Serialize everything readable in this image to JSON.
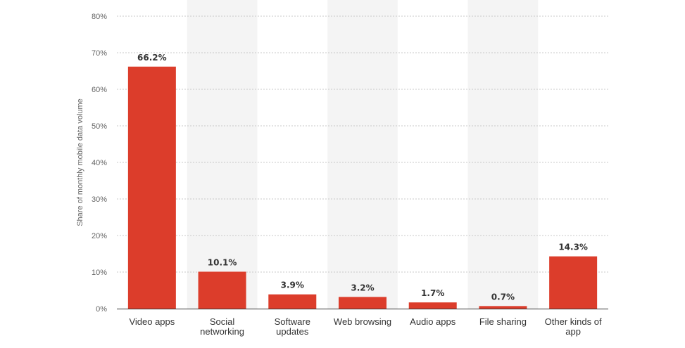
{
  "chart_data": {
    "type": "bar",
    "categories": [
      [
        "Video apps"
      ],
      [
        "Social",
        "networking"
      ],
      [
        "Software",
        "updates"
      ],
      [
        "Web browsing"
      ],
      [
        "Audio apps"
      ],
      [
        "File sharing"
      ],
      [
        "Other kinds of",
        "app"
      ]
    ],
    "values": [
      66.2,
      10.1,
      3.9,
      3.2,
      1.7,
      0.7,
      14.3
    ],
    "value_labels": [
      "66.2%",
      "10.1%",
      "3.9%",
      "3.2%",
      "1.7%",
      "0.7%",
      "14.3%"
    ],
    "ylabel": "Share of monthly mobile data volume",
    "xlabel": "",
    "ylim": [
      0,
      80
    ],
    "yticks": [
      0,
      10,
      20,
      30,
      40,
      50,
      60,
      70,
      80
    ],
    "ytick_labels": [
      "0%",
      "10%",
      "20%",
      "30%",
      "40%",
      "50%",
      "60%",
      "70%",
      "80%"
    ],
    "grid": true,
    "colors": {
      "bar": "#dc3d2b",
      "band": "#f4f4f4",
      "grid": "#c8c8c8",
      "axis": "#333333"
    }
  }
}
